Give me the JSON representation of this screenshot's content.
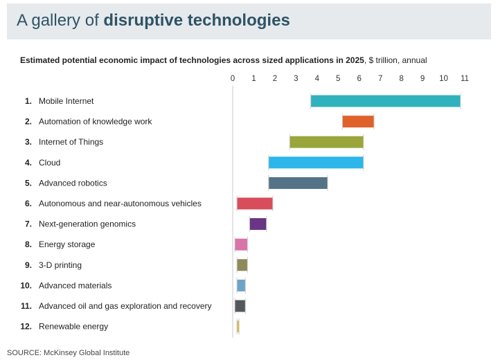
{
  "header": {
    "title_prefix": "A gallery of ",
    "title_bold": "disruptive technologies"
  },
  "subtitle": {
    "bold": "Estimated potential economic impact of technologies across sized applications in 2025",
    "rest": ", $ trillion, annual"
  },
  "source": "SOURCE: McKinsey Global Institute",
  "chart_data": {
    "type": "bar",
    "orientation": "horizontal-range",
    "title": "Estimated potential economic impact of technologies across sized applications in 2025",
    "unit": "$ trillion, annual",
    "xlim": [
      0,
      11
    ],
    "xticks": [
      "0",
      "1",
      "2",
      "3",
      "4",
      "5",
      "6",
      "7",
      "8",
      "9",
      "10",
      "11"
    ],
    "categories": [
      {
        "rank": "1.",
        "label": "Mobile Internet",
        "low": 3.7,
        "high": 10.8,
        "color": "#30b2bd"
      },
      {
        "rank": "2.",
        "label": "Automation of knowledge work",
        "low": 5.2,
        "high": 6.7,
        "color": "#e0622b"
      },
      {
        "rank": "3.",
        "label": "Internet of Things",
        "low": 2.7,
        "high": 6.2,
        "color": "#9aa63b"
      },
      {
        "rank": "4.",
        "label": "Cloud",
        "low": 1.7,
        "high": 6.2,
        "color": "#2cb6ea"
      },
      {
        "rank": "5.",
        "label": "Advanced robotics",
        "low": 1.7,
        "high": 4.5,
        "color": "#557387"
      },
      {
        "rank": "6.",
        "label": "Autonomous and near-autonomous vehicles",
        "low": 0.2,
        "high": 1.9,
        "color": "#d84d5c"
      },
      {
        "rank": "7.",
        "label": "Next-generation genomics",
        "low": 0.8,
        "high": 1.6,
        "color": "#6a3585"
      },
      {
        "rank": "8.",
        "label": "Energy storage",
        "low": 0.1,
        "high": 0.7,
        "color": "#d874a8"
      },
      {
        "rank": "9.",
        "label": "3-D printing",
        "low": 0.2,
        "high": 0.7,
        "color": "#8e8a5b"
      },
      {
        "rank": "10.",
        "label": "Advanced materials",
        "low": 0.2,
        "high": 0.6,
        "color": "#6ea3c9"
      },
      {
        "rank": "11.",
        "label": "Advanced oil and gas exploration and recovery",
        "low": 0.1,
        "high": 0.6,
        "color": "#55585b"
      },
      {
        "rank": "12.",
        "label": "Renewable energy",
        "low": 0.2,
        "high": 0.3,
        "color": "#d9b53a"
      }
    ]
  }
}
